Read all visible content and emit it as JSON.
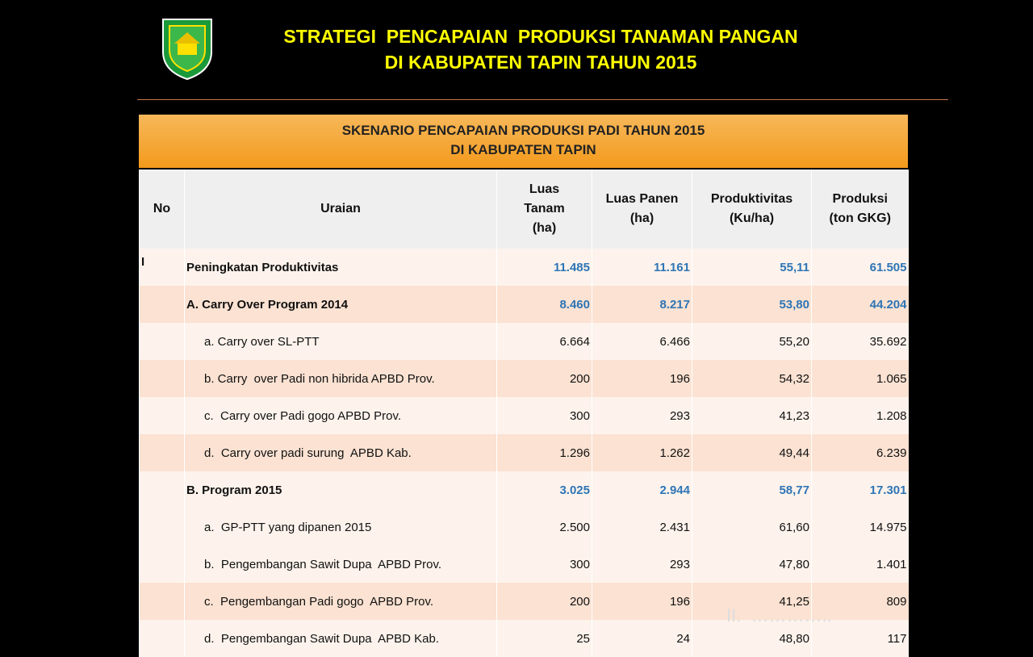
{
  "header": {
    "title_line1": "STRATEGI  PENCAPAIAN  PRODUKSI TANAMAN PANGAN",
    "title_line2": "DI KABUPATEN TAPIN TAHUN 2015"
  },
  "table": {
    "caption_line1": "SKENARIO PENCAPAIAN PRODUKSI PADI TAHUN 2015",
    "caption_line2": "DI KABUPATEN TAPIN",
    "columns": [
      "No",
      "Uraian",
      "Luas\nTanam\n(ha)",
      "Luas Panen\n(ha)",
      "Produktivitas\n(Ku/ha)",
      "Produksi\n(ton GKG)"
    ],
    "rows": [
      {
        "no": "I",
        "uraian": "Peningkatan Produktivitas",
        "cells": [
          "11.485",
          "11.161",
          "55,11",
          "61.505"
        ],
        "bold": true
      },
      {
        "uraian": "A. Carry Over Program 2014",
        "cells": [
          "8.460",
          "8.217",
          "53,80",
          "44.204"
        ],
        "bold": true
      },
      {
        "uraian": "a. Carry over SL-PTT",
        "cells": [
          "6.664",
          "6.466",
          "55,20",
          "35.692"
        ]
      },
      {
        "uraian": "b. Carry  over Padi non hibrida APBD Prov.",
        "cells": [
          "200",
          "196",
          "54,32",
          "1.065"
        ]
      },
      {
        "uraian": "c.  Carry over Padi gogo APBD Prov.",
        "cells": [
          "300",
          "293",
          "41,23",
          "1.208"
        ]
      },
      {
        "uraian": "d.  Carry over padi surung  APBD Kab.",
        "cells": [
          "1.296",
          "1.262",
          "49,44",
          "6.239"
        ]
      },
      {
        "uraian": "B. Program 2015",
        "cells": [
          "3.025",
          "2.944",
          "58,77",
          "17.301"
        ],
        "bold": true
      },
      {
        "uraian": "a.  GP-PTT yang dipanen 2015",
        "cells": [
          "2.500",
          "2.431",
          "61,60",
          "14.975"
        ]
      },
      {
        "uraian": "b.  Pengembangan Sawit Dupa  APBD Prov.",
        "cells": [
          "300",
          "293",
          "47,80",
          "1.401"
        ]
      },
      {
        "uraian": "c.  Pengembangan Padi gogo  APBD Prov.",
        "cells": [
          "200",
          "196",
          "41,25",
          "809"
        ]
      },
      {
        "uraian": "d.  Pengembangan Sawit Dupa  APBD Kab.",
        "cells": [
          "25",
          "24",
          "48,80",
          "117"
        ]
      }
    ]
  },
  "footer": {
    "text": "II.  ………….."
  }
}
